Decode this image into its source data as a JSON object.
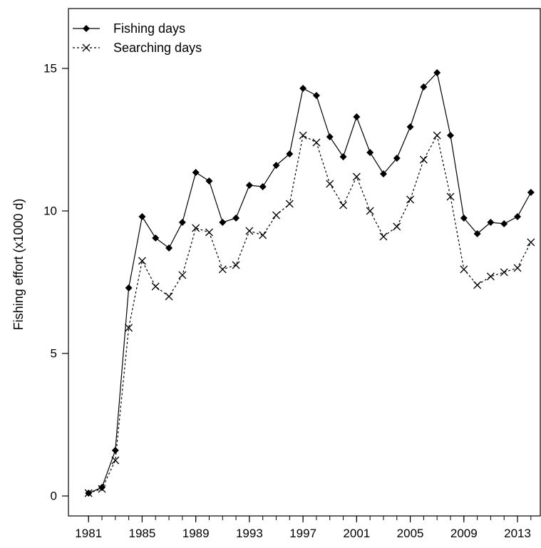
{
  "chart_data": {
    "type": "line",
    "title": "",
    "xlabel": "",
    "ylabel": "Fishing effort (x1000 d)",
    "xlim": [
      1979.5,
      2014.7
    ],
    "ylim": [
      -0.7,
      17.1
    ],
    "x_ticks": [
      1981,
      1985,
      1989,
      1993,
      1997,
      2001,
      2005,
      2009,
      2013
    ],
    "x_tick_labels": [
      "1981",
      "1985",
      "1989",
      "1993",
      "1997",
      "2001",
      "2005",
      "2009",
      "2013"
    ],
    "y_ticks": [
      0,
      5,
      10,
      15
    ],
    "y_tick_labels": [
      "0",
      "5",
      "10",
      "15"
    ],
    "legend_position": "top-left",
    "grid": false,
    "x": [
      1981,
      1982,
      1983,
      1984,
      1985,
      1986,
      1987,
      1988,
      1989,
      1990,
      1991,
      1992,
      1993,
      1994,
      1995,
      1996,
      1997,
      1998,
      1999,
      2000,
      2001,
      2002,
      2003,
      2004,
      2005,
      2006,
      2007,
      2008,
      2009,
      2010,
      2011,
      2012,
      2013,
      2014
    ],
    "series": [
      {
        "name": "Fishing days",
        "marker": "diamond",
        "line_style": "solid",
        "color": "#000000",
        "values": [
          0.1,
          0.3,
          1.6,
          7.3,
          9.8,
          9.05,
          8.7,
          9.6,
          11.35,
          11.05,
          9.6,
          9.75,
          10.9,
          10.85,
          11.6,
          12.0,
          14.3,
          14.05,
          12.6,
          11.9,
          13.3,
          12.05,
          11.3,
          11.85,
          12.95,
          14.35,
          14.85,
          12.65,
          9.75,
          9.2,
          9.6,
          9.55,
          9.8,
          10.65
        ]
      },
      {
        "name": "Searching days",
        "marker": "x",
        "line_style": "dashed",
        "color": "#000000",
        "values": [
          0.1,
          0.25,
          1.25,
          5.9,
          8.25,
          7.35,
          7.0,
          7.75,
          9.4,
          9.25,
          7.95,
          8.1,
          9.3,
          9.15,
          9.85,
          10.25,
          12.65,
          12.4,
          10.95,
          10.2,
          11.2,
          10.0,
          9.1,
          9.45,
          10.4,
          11.8,
          12.65,
          10.5,
          7.95,
          7.4,
          7.7,
          7.85,
          8.0,
          8.9
        ]
      }
    ]
  }
}
